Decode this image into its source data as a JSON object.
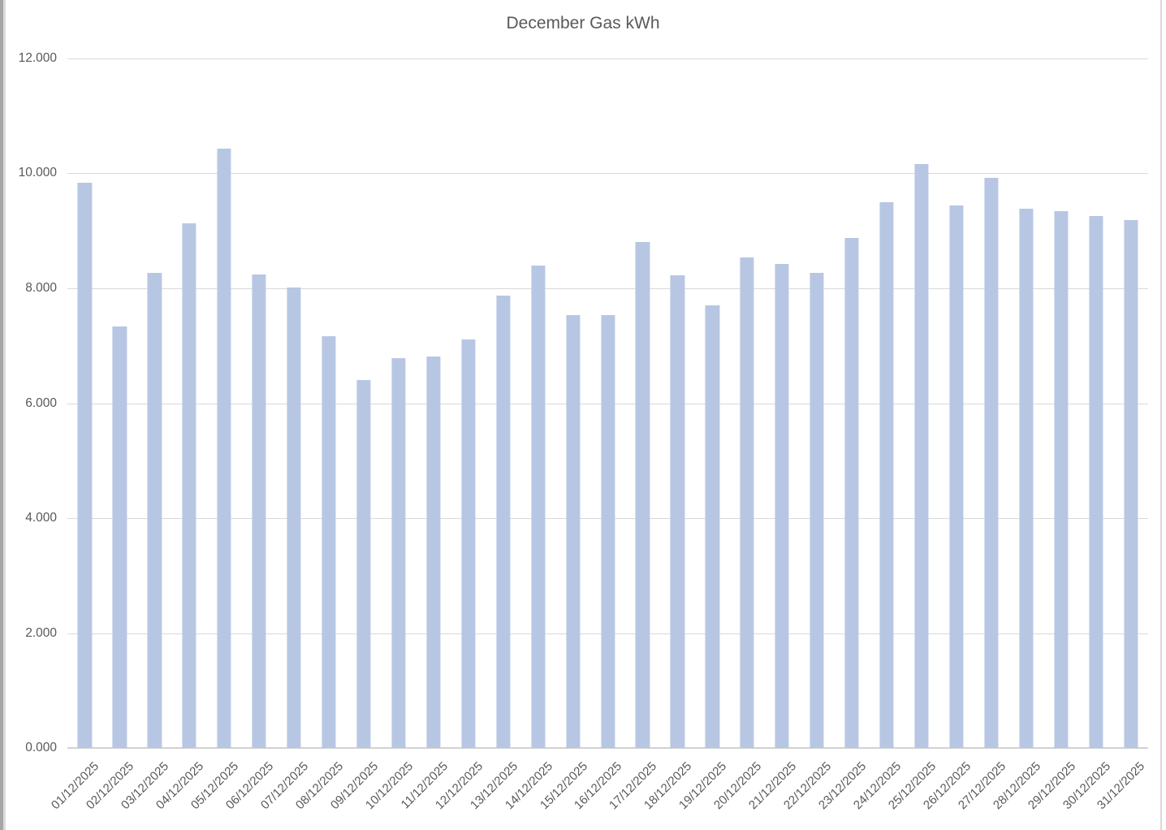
{
  "colors": {
    "bar_fill": "#b7c7e3",
    "gridline": "#d9d9d9",
    "axis_line": "#d2d2d2",
    "text": "#595959",
    "background": "#ffffff",
    "window_edge": "#a6a6a6"
  },
  "chart_data": {
    "type": "bar",
    "title": "December Gas kWh",
    "xlabel": "",
    "ylabel": "",
    "grid": "horizontal",
    "legend": false,
    "y_axis": {
      "min": 0,
      "max": 12000,
      "step": 2000,
      "tick_labels": [
        "0.000",
        "2.000",
        "4.000",
        "6.000",
        "8.000",
        "10.000",
        "12.000"
      ]
    },
    "categories": [
      "01/12/2025",
      "02/12/2025",
      "03/12/2025",
      "04/12/2025",
      "05/12/2025",
      "06/12/2025",
      "07/12/2025",
      "08/12/2025",
      "09/12/2025",
      "10/12/2025",
      "11/12/2025",
      "12/12/2025",
      "13/12/2025",
      "14/12/2025",
      "15/12/2025",
      "16/12/2025",
      "17/12/2025",
      "18/12/2025",
      "19/12/2025",
      "20/12/2025",
      "21/12/2025",
      "22/12/2025",
      "23/12/2025",
      "24/12/2025",
      "25/12/2025",
      "26/12/2025",
      "27/12/2025",
      "28/12/2025",
      "29/12/2025",
      "30/12/2025",
      "31/12/2025"
    ],
    "values": [
      9840,
      7340,
      8270,
      9130,
      10430,
      8240,
      8020,
      7170,
      6400,
      6780,
      6810,
      7110,
      7870,
      8390,
      7530,
      7530,
      8800,
      8220,
      7710,
      8540,
      8430,
      8270,
      8870,
      9500,
      10160,
      9440,
      9920,
      9380,
      9340,
      9260,
      9190
    ]
  }
}
